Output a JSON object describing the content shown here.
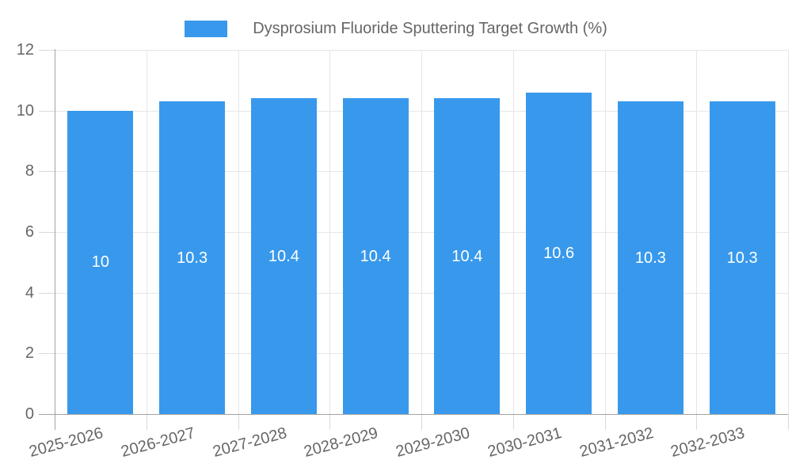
{
  "chart_data": {
    "type": "bar",
    "title": "",
    "legend": "Dysprosium Fluoride Sputtering Target Growth (%)",
    "legend_position": "top",
    "categories": [
      "2025-2026",
      "2026-2027",
      "2027-2028",
      "2028-2029",
      "2029-2030",
      "2030-2031",
      "2031-2032",
      "2032-2033"
    ],
    "values": [
      10,
      10.3,
      10.4,
      10.4,
      10.4,
      10.6,
      10.3,
      10.3
    ],
    "value_labels": [
      "10",
      "10.3",
      "10.4",
      "10.4",
      "10.4",
      "10.6",
      "10.3",
      "10.3"
    ],
    "xlabel": "",
    "ylabel": "",
    "ylim": [
      0,
      12
    ],
    "yticks": [
      0,
      2,
      4,
      6,
      8,
      10,
      12
    ],
    "grid": true,
    "colors": {
      "bar": "#3899ec",
      "grid": "#e6e6e6",
      "tick": "#d9d9d9",
      "axis": "#a3a3a3",
      "text": "#666666",
      "value_text": "#ffffff",
      "background": "#ffffff"
    }
  }
}
